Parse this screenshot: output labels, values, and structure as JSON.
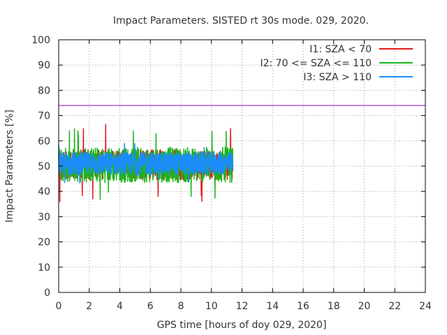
{
  "chart_data": {
    "type": "line",
    "title": "Impact Parameters. SISTED rt 30s mode. 029, 2020.",
    "xlabel": "GPS time [hours of doy 029, 2020]",
    "ylabel": "Impact Parameters [%]",
    "xlim": [
      0,
      24
    ],
    "ylim": [
      0,
      100
    ],
    "x_ticks": [
      0,
      2,
      4,
      6,
      8,
      10,
      12,
      14,
      16,
      18,
      20,
      22,
      24
    ],
    "y_ticks": [
      0,
      10,
      20,
      30,
      40,
      50,
      60,
      70,
      80,
      90,
      100
    ],
    "grid": true,
    "legend_position": "top-right",
    "threshold_line": {
      "y": 74,
      "color": "#9400d3"
    },
    "series": [
      {
        "name": "I1: SZA < 70",
        "color": "#e41a1c",
        "x_range": [
          0,
          11.4
        ],
        "center": 50.5,
        "typical_range": [
          45,
          57
        ],
        "max": 67,
        "min": 35.5
      },
      {
        "name": "I2: 70 <= SZA <= 110",
        "color": "#1db41d",
        "x_range": [
          0,
          11.4
        ],
        "center": 50.5,
        "typical_range": [
          44,
          58
        ],
        "max": 66,
        "min": 36.5
      },
      {
        "name": "I3: SZA > 110",
        "color": "#1a8cff",
        "x_range": [
          0,
          11.4
        ],
        "center": 51,
        "typical_range": [
          47,
          56
        ],
        "max": 59,
        "min": 43
      }
    ]
  }
}
